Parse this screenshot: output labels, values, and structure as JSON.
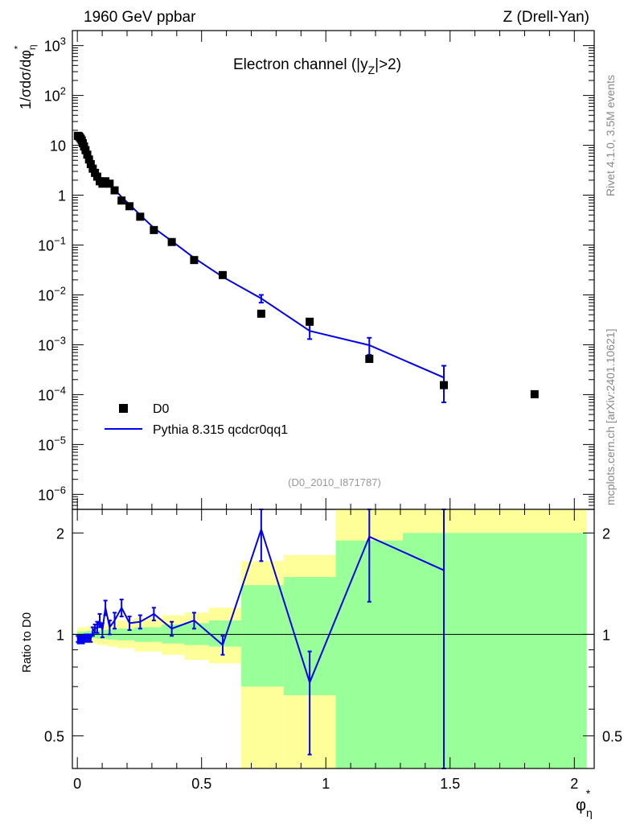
{
  "header": {
    "left": "1960 GeV ppbar",
    "right": "Z (Drell-Yan)"
  },
  "side_labels": {
    "rivet": "Rivet 4.1.0,  3.5M events",
    "mcplots": "mcplots.cern.ch [arXiv:2401.10621]"
  },
  "analysis_id": "(D0_2010_I871787)",
  "colors": {
    "data": "#000000",
    "mc": "#0000ee",
    "band_inner": "#99ff99",
    "band_outer": "#ffff99",
    "side_text": "#888888"
  },
  "chart_data": [
    {
      "type": "scatter+line",
      "title": "Electron channel (|y_Z|>2)",
      "title_parts": {
        "pre": "Electron channel (|y",
        "sub": "Z",
        "post": "|>2)"
      },
      "ylabel": "1/σdσ/dφ*η",
      "ylabel_parts": {
        "main": "1/σdσ/dφ",
        "sup": "*",
        "sub": "η"
      },
      "yscale": "log",
      "ylim": [
        5e-07,
        2000
      ],
      "xlim": [
        -0.02,
        2.08
      ],
      "y_ticks": [
        {
          "value": 1000.0,
          "label": "10",
          "exp": "3"
        },
        {
          "value": 100.0,
          "label": "10",
          "exp": "2"
        },
        {
          "value": 10,
          "label": "10",
          "exp": ""
        },
        {
          "value": 1,
          "label": "1",
          "exp": ""
        },
        {
          "value": 0.1,
          "label": "10",
          "exp": "−1"
        },
        {
          "value": 0.01,
          "label": "10",
          "exp": "−2"
        },
        {
          "value": 0.001,
          "label": "10",
          "exp": "−3"
        },
        {
          "value": 0.0001,
          "label": "10",
          "exp": "−4"
        },
        {
          "value": 1e-05,
          "label": "10",
          "exp": "−5"
        },
        {
          "value": 1e-06,
          "label": "10",
          "exp": "−6"
        }
      ],
      "legend": [
        {
          "name": "D0",
          "style": "marker"
        },
        {
          "name": "Pythia 8.315 qcdcr0qq1",
          "style": "line"
        }
      ],
      "legend_position": "bottom-left",
      "series": [
        {
          "name": "D0",
          "x": [
            0.002,
            0.006,
            0.01,
            0.014,
            0.018,
            0.022,
            0.027,
            0.033,
            0.04,
            0.047,
            0.054,
            0.062,
            0.071,
            0.08,
            0.09,
            0.101,
            0.113,
            0.13,
            0.15,
            0.178,
            0.21,
            0.253,
            0.308,
            0.38,
            0.47,
            0.585,
            0.74,
            0.935,
            1.175,
            1.475,
            1.84
          ],
          "y": [
            15.5,
            15.2,
            14.5,
            13.5,
            12.5,
            11.0,
            9.5,
            8.0,
            6.5,
            5.2,
            4.2,
            3.4,
            2.8,
            2.35,
            1.9,
            1.7,
            1.9,
            1.7,
            1.25,
            0.78,
            0.6,
            0.37,
            0.2,
            0.115,
            0.05,
            0.025,
            0.0042,
            0.0029,
            0.00052,
            0.000155,
            0.000102
          ]
        },
        {
          "name": "Pythia 8.315 qcdcr0qq1",
          "x": [
            0.002,
            0.006,
            0.01,
            0.014,
            0.018,
            0.022,
            0.027,
            0.033,
            0.04,
            0.047,
            0.054,
            0.062,
            0.071,
            0.08,
            0.09,
            0.101,
            0.113,
            0.13,
            0.15,
            0.178,
            0.21,
            0.253,
            0.308,
            0.38,
            0.47,
            0.585,
            0.74,
            0.935,
            1.175,
            1.475
          ],
          "y": [
            15.0,
            14.6,
            14.0,
            13.0,
            12.0,
            10.6,
            9.2,
            7.8,
            6.4,
            5.2,
            4.2,
            3.5,
            2.9,
            2.45,
            2.1,
            1.75,
            1.7,
            1.6,
            1.3,
            0.92,
            0.65,
            0.4,
            0.22,
            0.12,
            0.055,
            0.023,
            0.0085,
            0.0019,
            0.00098,
            0.00022
          ],
          "yerr_low": [
            0,
            0,
            0,
            0,
            0,
            0,
            0,
            0,
            0,
            0,
            0,
            0,
            0,
            0,
            0,
            0,
            0,
            0,
            0,
            0,
            0,
            0,
            0,
            0,
            0,
            0,
            0.0015,
            0.0006,
            0.00035,
            0.00015
          ],
          "yerr_high": [
            0,
            0,
            0,
            0,
            0,
            0,
            0,
            0,
            0,
            0,
            0,
            0,
            0,
            0,
            0,
            0,
            0,
            0,
            0,
            0,
            0,
            0,
            0,
            0,
            0,
            0,
            0.0015,
            0.0006,
            0.0004,
            0.00016
          ]
        }
      ]
    },
    {
      "type": "ratio",
      "ylabel": "Ratio to D0",
      "yscale": "log",
      "ylim": [
        0.4,
        2.35
      ],
      "xlim": [
        -0.02,
        2.08
      ],
      "xlabel": "φ*η",
      "xlabel_parts": {
        "main": "φ",
        "sup": "*",
        "sub": "η"
      },
      "x_ticks": [
        {
          "value": 0,
          "label": "0"
        },
        {
          "value": 0.5,
          "label": "0.5"
        },
        {
          "value": 1,
          "label": "1"
        },
        {
          "value": 1.5,
          "label": "1.5"
        },
        {
          "value": 2,
          "label": "2"
        }
      ],
      "y_ticks": [
        {
          "value": 0.5,
          "label": "0.5"
        },
        {
          "value": 1,
          "label": "1"
        },
        {
          "value": 2,
          "label": "2"
        }
      ],
      "bands": [
        {
          "x0": 0.0,
          "x1": 0.04,
          "inner": [
            0.98,
            1.02
          ],
          "outer": [
            0.95,
            1.05
          ]
        },
        {
          "x0": 0.04,
          "x1": 0.08,
          "inner": [
            0.975,
            1.025
          ],
          "outer": [
            0.94,
            1.06
          ]
        },
        {
          "x0": 0.08,
          "x1": 0.12,
          "inner": [
            0.97,
            1.03
          ],
          "outer": [
            0.93,
            1.07
          ]
        },
        {
          "x0": 0.12,
          "x1": 0.16,
          "inner": [
            0.965,
            1.035
          ],
          "outer": [
            0.92,
            1.08
          ]
        },
        {
          "x0": 0.16,
          "x1": 0.23,
          "inner": [
            0.96,
            1.04
          ],
          "outer": [
            0.91,
            1.1
          ]
        },
        {
          "x0": 0.23,
          "x1": 0.34,
          "inner": [
            0.95,
            1.05
          ],
          "outer": [
            0.89,
            1.12
          ]
        },
        {
          "x0": 0.34,
          "x1": 0.43,
          "inner": [
            0.94,
            1.07
          ],
          "outer": [
            0.87,
            1.14
          ]
        },
        {
          "x0": 0.43,
          "x1": 0.53,
          "inner": [
            0.93,
            1.08
          ],
          "outer": [
            0.84,
            1.16
          ]
        },
        {
          "x0": 0.53,
          "x1": 0.66,
          "inner": [
            0.92,
            1.1
          ],
          "outer": [
            0.82,
            1.2
          ]
        },
        {
          "x0": 0.66,
          "x1": 0.83,
          "inner": [
            0.7,
            1.4
          ],
          "outer": [
            0.4,
            1.65
          ]
        },
        {
          "x0": 0.83,
          "x1": 1.04,
          "inner": [
            0.66,
            1.48
          ],
          "outer": [
            0.4,
            1.72
          ]
        },
        {
          "x0": 1.04,
          "x1": 1.31,
          "inner": [
            0.4,
            1.9
          ],
          "outer": [
            0.4,
            2.35
          ]
        },
        {
          "x0": 1.31,
          "x1": 2.05,
          "inner": [
            0.4,
            2.0
          ],
          "outer": [
            0.4,
            2.35
          ]
        }
      ],
      "series": [
        {
          "name": "Pythia 8.315 qcdcr0qq1 / D0",
          "x": [
            0.002,
            0.006,
            0.01,
            0.014,
            0.018,
            0.022,
            0.027,
            0.033,
            0.04,
            0.047,
            0.054,
            0.062,
            0.071,
            0.08,
            0.09,
            0.101,
            0.113,
            0.13,
            0.15,
            0.178,
            0.21,
            0.253,
            0.308,
            0.38,
            0.47,
            0.585,
            0.74,
            0.935,
            1.175,
            1.475
          ],
          "y": [
            0.97,
            0.96,
            0.97,
            0.97,
            0.97,
            0.96,
            0.97,
            0.98,
            0.97,
            0.98,
            0.97,
            1.02,
            1.04,
            1.05,
            1.1,
            1.03,
            1.2,
            1.05,
            1.1,
            1.2,
            1.08,
            1.09,
            1.15,
            1.04,
            1.1,
            0.93,
            2.05,
            0.72,
            1.95,
            1.55
          ],
          "yerr_low": [
            0.02,
            0.02,
            0.02,
            0.02,
            0.02,
            0.02,
            0.02,
            0.02,
            0.02,
            0.02,
            0.02,
            0.03,
            0.03,
            0.04,
            0.05,
            0.05,
            0.06,
            0.05,
            0.06,
            0.07,
            0.05,
            0.05,
            0.05,
            0.05,
            0.06,
            0.06,
            0.4,
            0.28,
            0.7,
            1.15
          ],
          "yerr_high": [
            0.02,
            0.02,
            0.02,
            0.02,
            0.02,
            0.02,
            0.02,
            0.02,
            0.02,
            0.02,
            0.02,
            0.03,
            0.03,
            0.04,
            0.05,
            0.05,
            0.06,
            0.05,
            0.06,
            0.07,
            0.05,
            0.05,
            0.05,
            0.05,
            0.06,
            0.06,
            0.3,
            0.17,
            0.4,
            0.8
          ]
        }
      ]
    }
  ]
}
